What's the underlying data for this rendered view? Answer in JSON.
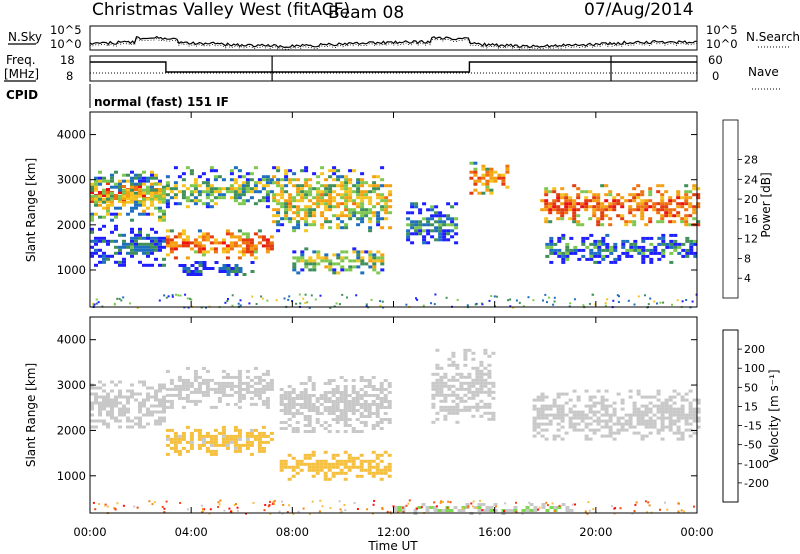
{
  "header": {
    "title": "Christmas Valley West (fitACF)",
    "beam": "Beam 08",
    "date": "07/Aug/2014"
  },
  "noise_panel": {
    "left_label": "N.Sky",
    "right_label": "N.Search",
    "left_ticks": [
      "10^5",
      "10^0"
    ],
    "right_ticks": [
      "10^5",
      "10^0"
    ]
  },
  "freq_panel": {
    "left_label_line1": "Freq.",
    "left_label_line2": "[MHz]",
    "right_label": "Nave",
    "left_ticks": [
      "18",
      "8"
    ],
    "right_ticks": [
      "60",
      "0"
    ]
  },
  "cpid_panel": {
    "label": "CPID",
    "text": "normal (fast) 151 IF"
  },
  "chart_data": [
    {
      "type": "heatmap",
      "name_printed": "",
      "xlabel": "",
      "ylabel": "Slant Range [km]",
      "yticks": [
        "1000",
        "2000",
        "3000",
        "4000"
      ],
      "ylim": [
        180,
        4500
      ],
      "colorbar": {
        "label": "Power [dB]",
        "tick_labels": [
          "4",
          "8",
          "12",
          "16",
          "20",
          "24",
          "28"
        ],
        "range": [
          0,
          30
        ],
        "colors": [
          "#1e1eff",
          "#1f6fbf",
          "#3e8f5a",
          "#7ec850",
          "#f5c420",
          "#f5a010",
          "#f07010",
          "#e33a10",
          "#ee1010"
        ]
      },
      "regions": [
        {
          "t0": 0.0,
          "t1": 3.0,
          "r0": 2500,
          "r1": 2950,
          "level": 26
        },
        {
          "t0": 0.0,
          "t1": 3.0,
          "r0": 2100,
          "r1": 3200,
          "level": 14
        },
        {
          "t0": 0.0,
          "t1": 3.0,
          "r0": 1100,
          "r1": 2000,
          "level": 6
        },
        {
          "t0": 3.0,
          "t1": 7.2,
          "r0": 1300,
          "r1": 1900,
          "level": 24
        },
        {
          "t0": 3.0,
          "t1": 7.2,
          "r0": 2400,
          "r1": 3300,
          "level": 12
        },
        {
          "t0": 3.5,
          "t1": 6.5,
          "r0": 900,
          "r1": 1200,
          "level": 6
        },
        {
          "t0": 7.2,
          "t1": 11.8,
          "r0": 1900,
          "r1": 3300,
          "level": 16
        },
        {
          "t0": 8.0,
          "t1": 11.5,
          "r0": 950,
          "r1": 1500,
          "level": 14
        },
        {
          "t0": 12.5,
          "t1": 14.5,
          "r0": 1600,
          "r1": 2500,
          "level": 8
        },
        {
          "t0": 15.0,
          "t1": 16.5,
          "r0": 2700,
          "r1": 3400,
          "level": 22
        },
        {
          "t0": 17.8,
          "t1": 24.0,
          "r0": 2000,
          "r1": 2900,
          "level": 24
        },
        {
          "t0": 18.0,
          "t1": 24.0,
          "r0": 1200,
          "r1": 1800,
          "level": 8
        }
      ]
    },
    {
      "type": "heatmap",
      "name_printed": "",
      "xlabel": "Time UT",
      "ylabel": "Slant Range [km]",
      "xticks": [
        "00:00",
        "04:00",
        "08:00",
        "12:00",
        "16:00",
        "20:00",
        "00:00"
      ],
      "xlim": [
        0,
        24
      ],
      "yticks": [
        "1000",
        "2000",
        "3000",
        "4000"
      ],
      "ylim": [
        180,
        4500
      ],
      "colorbar": {
        "label": "Velocity [m s⁻¹]",
        "tick_labels": [
          "200",
          "100",
          "50",
          "15",
          "-15",
          "-50",
          "-100",
          "-200"
        ],
        "range": [
          -250,
          250
        ],
        "colors": [
          "#ff1010",
          "#f04a10",
          "#f58a10",
          "#f5c040",
          "#c8c8c8",
          "#7ed850",
          "#3a9a5a",
          "#1f6fbf",
          "#1e3eff"
        ]
      },
      "regions": [
        {
          "t0": 0.0,
          "t1": 3.0,
          "r0": 2100,
          "r1": 3100,
          "level": 0
        },
        {
          "t0": 3.0,
          "t1": 7.2,
          "r0": 1500,
          "r1": 2100,
          "level": -30
        },
        {
          "t0": 3.0,
          "t1": 7.2,
          "r0": 2500,
          "r1": 3400,
          "level": -10
        },
        {
          "t0": 7.5,
          "t1": 11.8,
          "r0": 950,
          "r1": 1550,
          "level": -60
        },
        {
          "t0": 7.5,
          "t1": 11.8,
          "r0": 2000,
          "r1": 3200,
          "level": 0
        },
        {
          "t0": 13.5,
          "t1": 16.0,
          "r0": 2200,
          "r1": 3800,
          "level": 20
        },
        {
          "t0": 17.5,
          "t1": 24.0,
          "r0": 1800,
          "r1": 2900,
          "level": 0
        },
        {
          "t0": 12.0,
          "t1": 19.0,
          "r0": 200,
          "r1": 400,
          "level": 30
        }
      ]
    }
  ]
}
